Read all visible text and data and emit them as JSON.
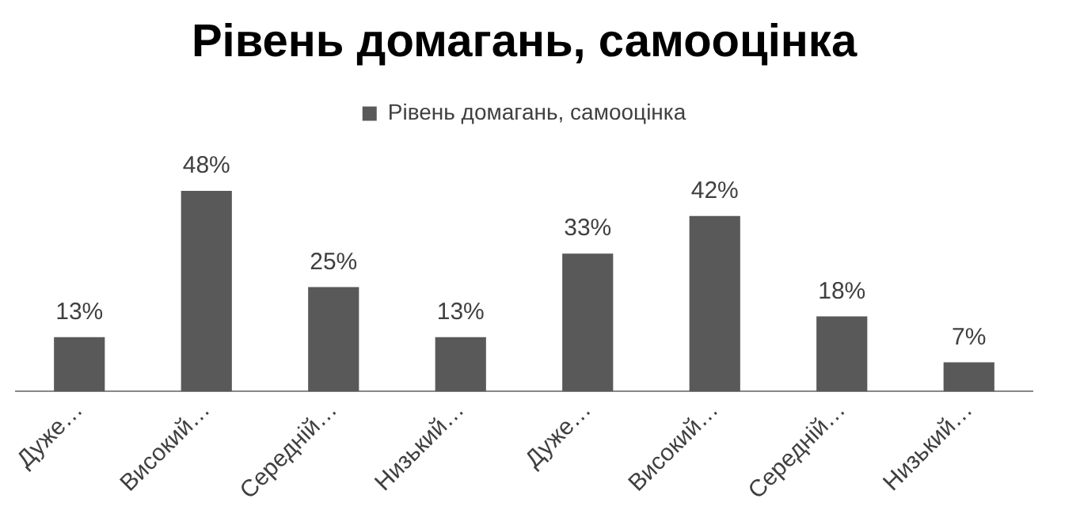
{
  "chart_data": {
    "type": "bar",
    "title": "Рівень домагань, самооцінка",
    "categories": [
      "Дуже…",
      "Високий…",
      "Середній…",
      "Низький…",
      "Дуже…",
      "Високий…",
      "Середній…",
      "Низький…"
    ],
    "series": [
      {
        "name": "Рівень домагань, самооцінка",
        "color": "#595959",
        "values": [
          13,
          48,
          25,
          13,
          33,
          42,
          18,
          7
        ],
        "value_labels": [
          "13%",
          "48%",
          "25%",
          "13%",
          "33%",
          "42%",
          "18%",
          "7%"
        ]
      }
    ],
    "legend": "top",
    "grid": false
  }
}
